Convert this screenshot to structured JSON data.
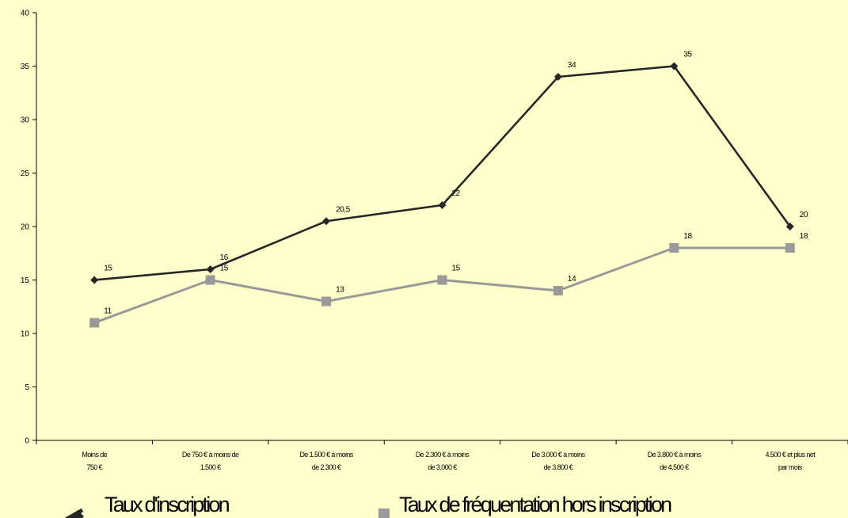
{
  "chart_data": {
    "type": "line",
    "categories": [
      [
        "Moins de",
        "750 €"
      ],
      [
        "De 750 € à moins de",
        "1.500 €"
      ],
      [
        "De 1.500 € à moins",
        "de 2.300 €"
      ],
      [
        "De 2.300 € à moins",
        "de 3.000 €"
      ],
      [
        "De 3.000 € à moins",
        "de 3.800 €"
      ],
      [
        "De 3.800 € à moins",
        "de 4.500 €"
      ],
      [
        "4.500 € et plus net",
        "par mois"
      ]
    ],
    "ylim": [
      0,
      40
    ],
    "y_ticks": [
      "0",
      "5",
      "10",
      "15",
      "20",
      "25",
      "30",
      "35",
      "40"
    ],
    "grid": false,
    "legend_position": "bottom",
    "series": [
      {
        "name": "Taux d'inscription",
        "values": [
          15,
          16,
          20.5,
          22,
          34,
          35,
          20
        ],
        "labels": [
          "15",
          "16",
          "20,5",
          "22",
          "34",
          "35",
          "20"
        ],
        "color": "#262626",
        "marker": "diamond"
      },
      {
        "name": "Taux de fréquentation hors inscription",
        "values": [
          11,
          15,
          13,
          15,
          14,
          18,
          18
        ],
        "labels": [
          "11",
          "15",
          "13",
          "15",
          "14",
          "18",
          "18"
        ],
        "color": "#999999",
        "marker": "square"
      }
    ]
  }
}
